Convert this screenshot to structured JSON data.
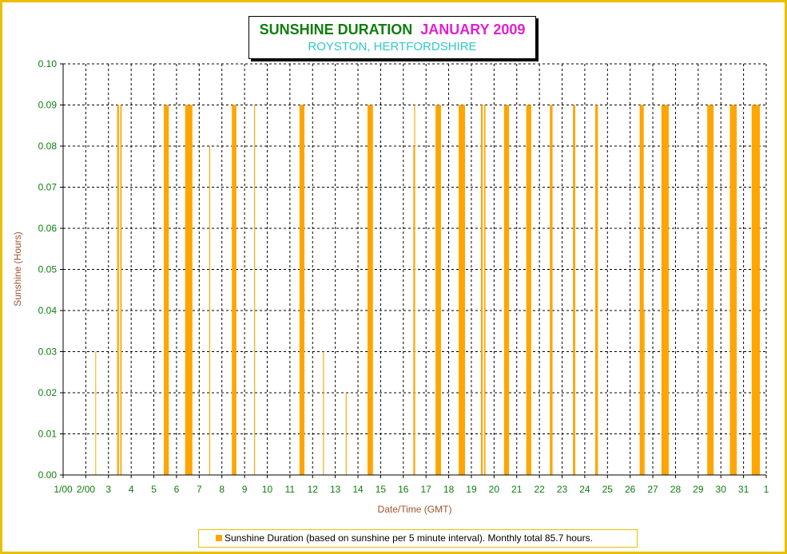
{
  "title": {
    "main": "SUNSHINE DURATION",
    "month": "JANUARY 2009",
    "subtitle": "ROYSTON, HERTFORDSHIRE"
  },
  "colors": {
    "frame": "#E8C000",
    "bar": "#FFA500",
    "title_main": "#0E7E0E",
    "title_month": "#E020D0",
    "subtitle": "#30C8C8",
    "tick_label": "#0E7E0E",
    "axis_label": "#A0522D"
  },
  "chart_data": {
    "type": "bar",
    "title": "SUNSHINE DURATION  JANUARY 2009",
    "subtitle": "ROYSTON, HERTFORDSHIRE",
    "xlabel": "Date/Time (GMT)",
    "ylabel": "Sunshine (Hours)",
    "ylim": [
      0,
      0.1
    ],
    "grid": true,
    "legend_position": "bottom",
    "y_ticks": [
      "0.00",
      "0.01",
      "0.02",
      "0.03",
      "0.04",
      "0.05",
      "0.06",
      "0.07",
      "0.08",
      "0.09",
      "0.10"
    ],
    "x_ticks": [
      "1/00",
      "2/00",
      "3",
      "4",
      "5",
      "6",
      "7",
      "8",
      "9",
      "10",
      "11",
      "12",
      "13",
      "14",
      "15",
      "16",
      "17",
      "18",
      "19",
      "20",
      "21",
      "22",
      "23",
      "24",
      "25",
      "26",
      "27",
      "28",
      "29",
      "30",
      "31",
      "1"
    ],
    "x_domain_days": [
      1,
      32
    ],
    "series": [
      {
        "name": "Sunshine Duration (based on sunshine per 5 minute interval). Monthly total 85.7 hours.",
        "bars": [
          {
            "start": 2.42,
            "end": 2.45,
            "value": 0.03
          },
          {
            "start": 3.38,
            "end": 3.46,
            "value": 0.09
          },
          {
            "start": 3.52,
            "end": 3.58,
            "value": 0.09
          },
          {
            "start": 5.44,
            "end": 5.66,
            "value": 0.09
          },
          {
            "start": 6.38,
            "end": 6.7,
            "value": 0.09
          },
          {
            "start": 7.44,
            "end": 7.48,
            "value": 0.08
          },
          {
            "start": 8.44,
            "end": 8.64,
            "value": 0.09
          },
          {
            "start": 9.42,
            "end": 9.46,
            "value": 0.09
          },
          {
            "start": 11.42,
            "end": 11.64,
            "value": 0.09
          },
          {
            "start": 12.46,
            "end": 12.5,
            "value": 0.03
          },
          {
            "start": 13.46,
            "end": 13.5,
            "value": 0.02
          },
          {
            "start": 14.42,
            "end": 14.66,
            "value": 0.09
          },
          {
            "start": 16.44,
            "end": 16.48,
            "value": 0.08
          },
          {
            "start": 16.48,
            "end": 16.52,
            "value": 0.09
          },
          {
            "start": 17.42,
            "end": 17.66,
            "value": 0.09
          },
          {
            "start": 18.44,
            "end": 18.72,
            "value": 0.09
          },
          {
            "start": 19.42,
            "end": 19.5,
            "value": 0.09
          },
          {
            "start": 19.56,
            "end": 19.62,
            "value": 0.09
          },
          {
            "start": 20.44,
            "end": 20.66,
            "value": 0.09
          },
          {
            "start": 21.42,
            "end": 21.64,
            "value": 0.09
          },
          {
            "start": 22.46,
            "end": 22.58,
            "value": 0.09
          },
          {
            "start": 23.48,
            "end": 23.58,
            "value": 0.09
          },
          {
            "start": 24.46,
            "end": 24.58,
            "value": 0.09
          },
          {
            "start": 26.42,
            "end": 26.6,
            "value": 0.09
          },
          {
            "start": 26.6,
            "end": 26.64,
            "value": 0.04
          },
          {
            "start": 27.38,
            "end": 27.7,
            "value": 0.09
          },
          {
            "start": 29.4,
            "end": 29.68,
            "value": 0.09
          },
          {
            "start": 30.4,
            "end": 30.7,
            "value": 0.09
          },
          {
            "start": 31.36,
            "end": 31.72,
            "value": 0.09
          }
        ]
      }
    ]
  },
  "legend": {
    "text": "Sunshine Duration (based on sunshine per 5 minute interval). Monthly total 85.7 hours."
  }
}
